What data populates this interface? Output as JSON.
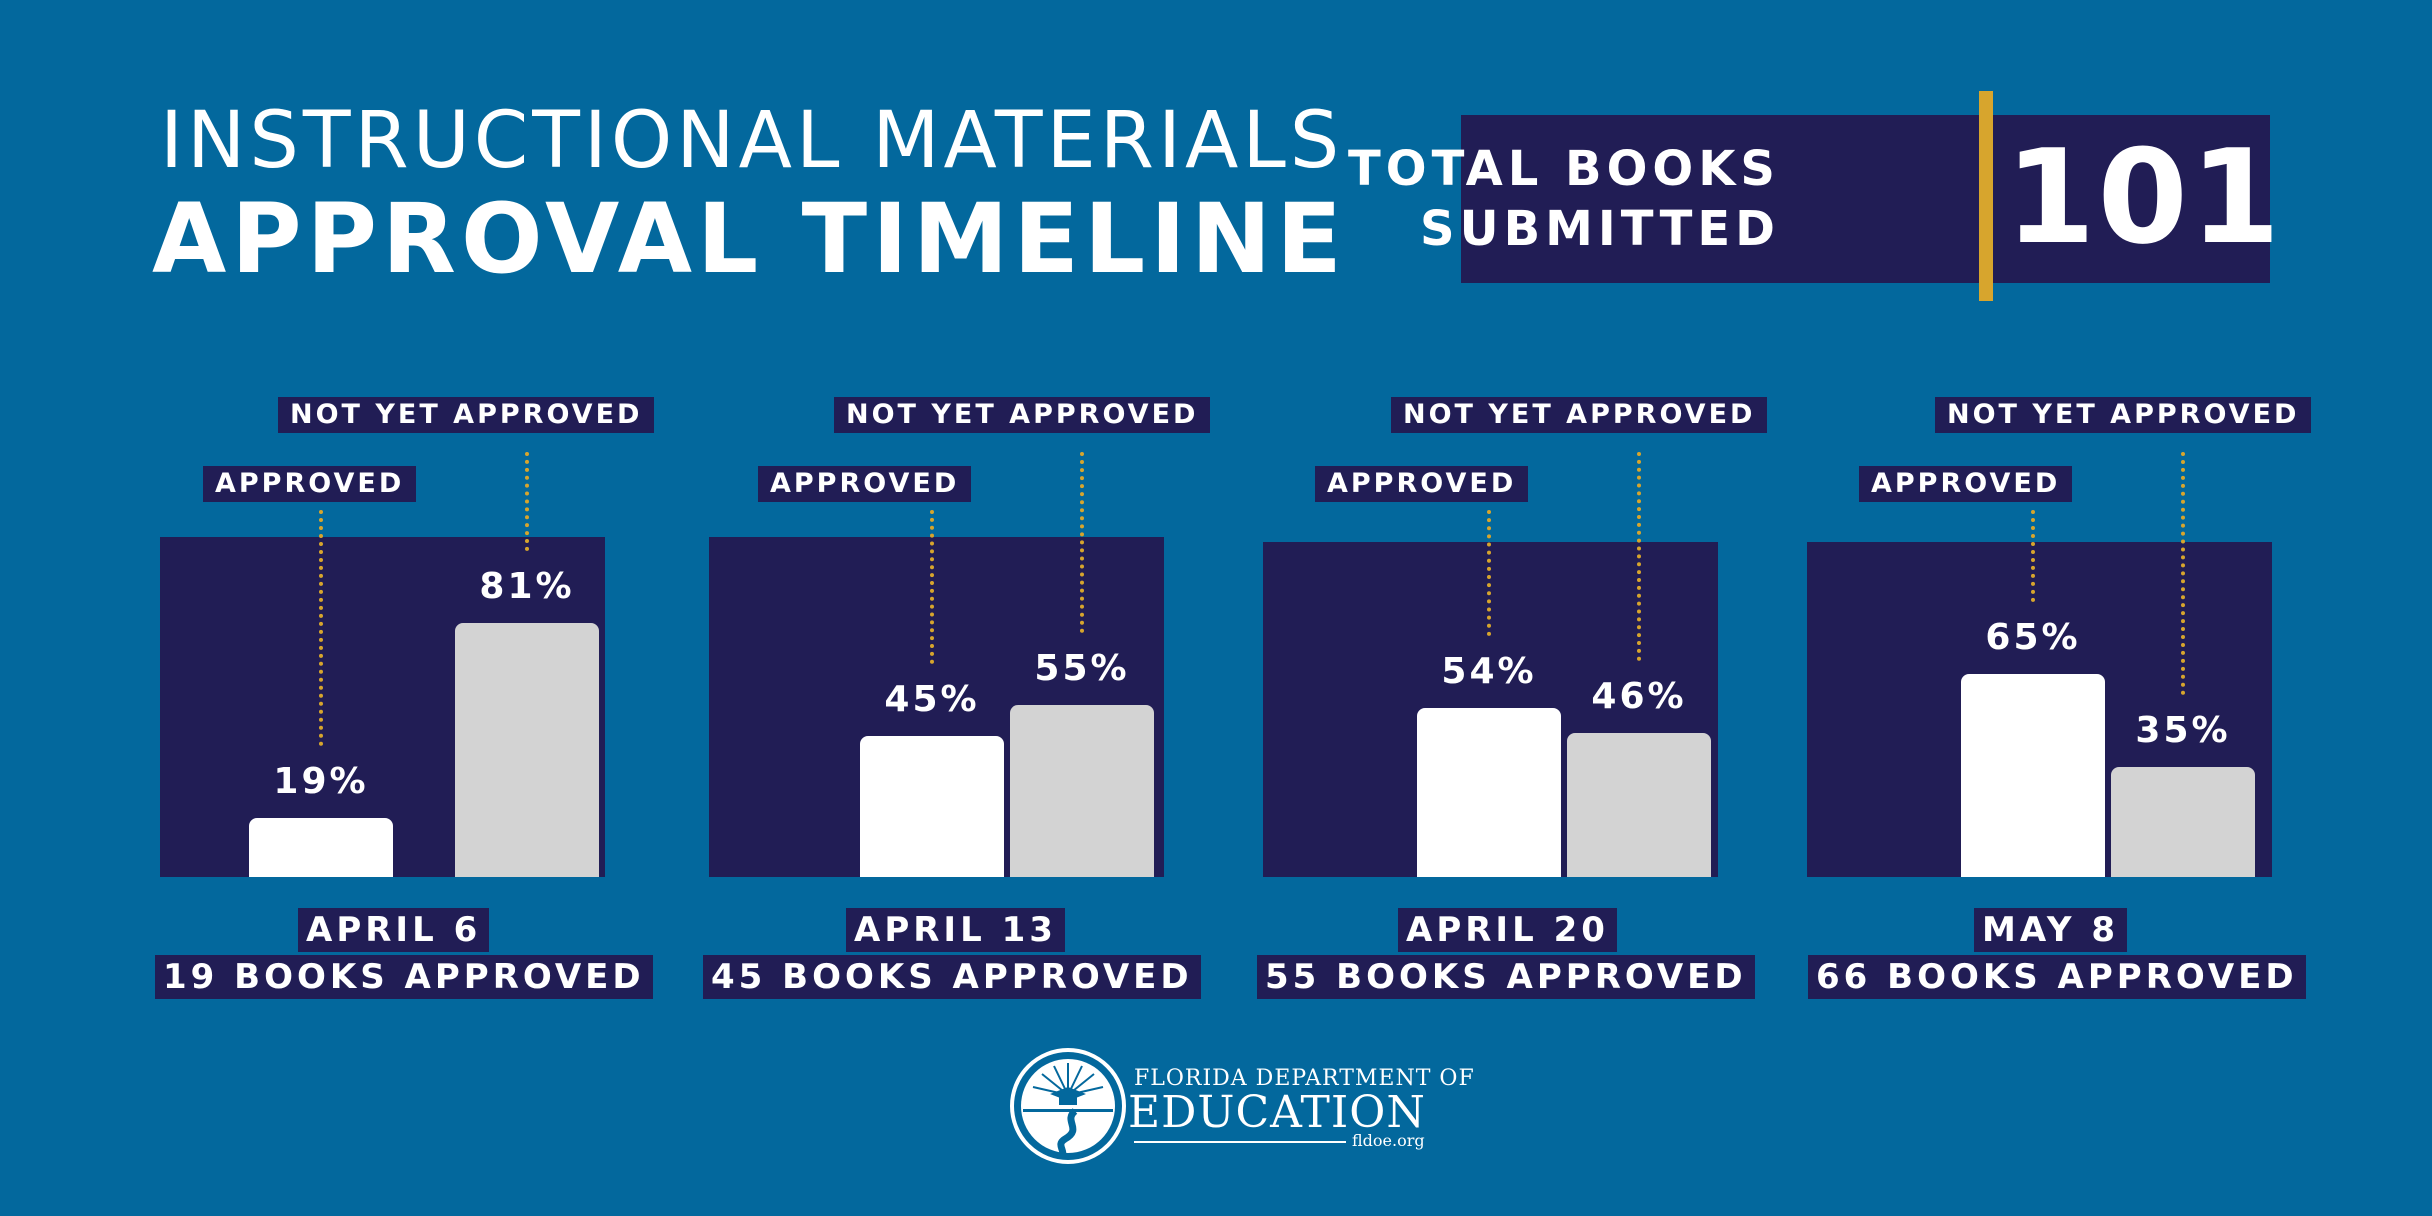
{
  "header": {
    "title_line1": "INSTRUCTIONAL MATERIALS",
    "title_line2": "APPROVAL TIMELINE"
  },
  "total": {
    "label_line1": "TOTAL BOOKS",
    "label_line2": "SUBMITTED",
    "value": "101"
  },
  "labels": {
    "approved": "APPROVED",
    "not_approved": "NOT YET APPROVED"
  },
  "colors": {
    "background": "#03689d",
    "panel": "#211d55",
    "approved_bar": "#ffffff",
    "not_approved_bar": "#d3d3d3",
    "leader": "#d7a52d"
  },
  "chart_data": {
    "type": "bar",
    "series": [
      {
        "name": "APPROVED",
        "values": [
          19,
          45,
          54,
          65
        ]
      },
      {
        "name": "NOT YET APPROVED",
        "values": [
          81,
          55,
          46,
          35
        ]
      }
    ],
    "groups": [
      {
        "date": "APRIL 6",
        "caption": "19 BOOKS APPROVED",
        "approved_label": "19%",
        "not_approved_label": "81%"
      },
      {
        "date": "APRIL 13",
        "caption": "45 BOOKS APPROVED",
        "approved_label": "45%",
        "not_approved_label": "55%"
      },
      {
        "date": "APRIL 20",
        "caption": "55 BOOKS APPROVED",
        "approved_label": "54%",
        "not_approved_label": "46%"
      },
      {
        "date": "MAY 8",
        "caption": "66 BOOKS APPROVED",
        "approved_label": "65%",
        "not_approved_label": "35%"
      }
    ],
    "ylim": [
      0,
      100
    ],
    "grid": false
  },
  "logo": {
    "line1": "FLORIDA DEPARTMENT OF",
    "line2": "EDUCATION",
    "url": "fldoe.org"
  }
}
